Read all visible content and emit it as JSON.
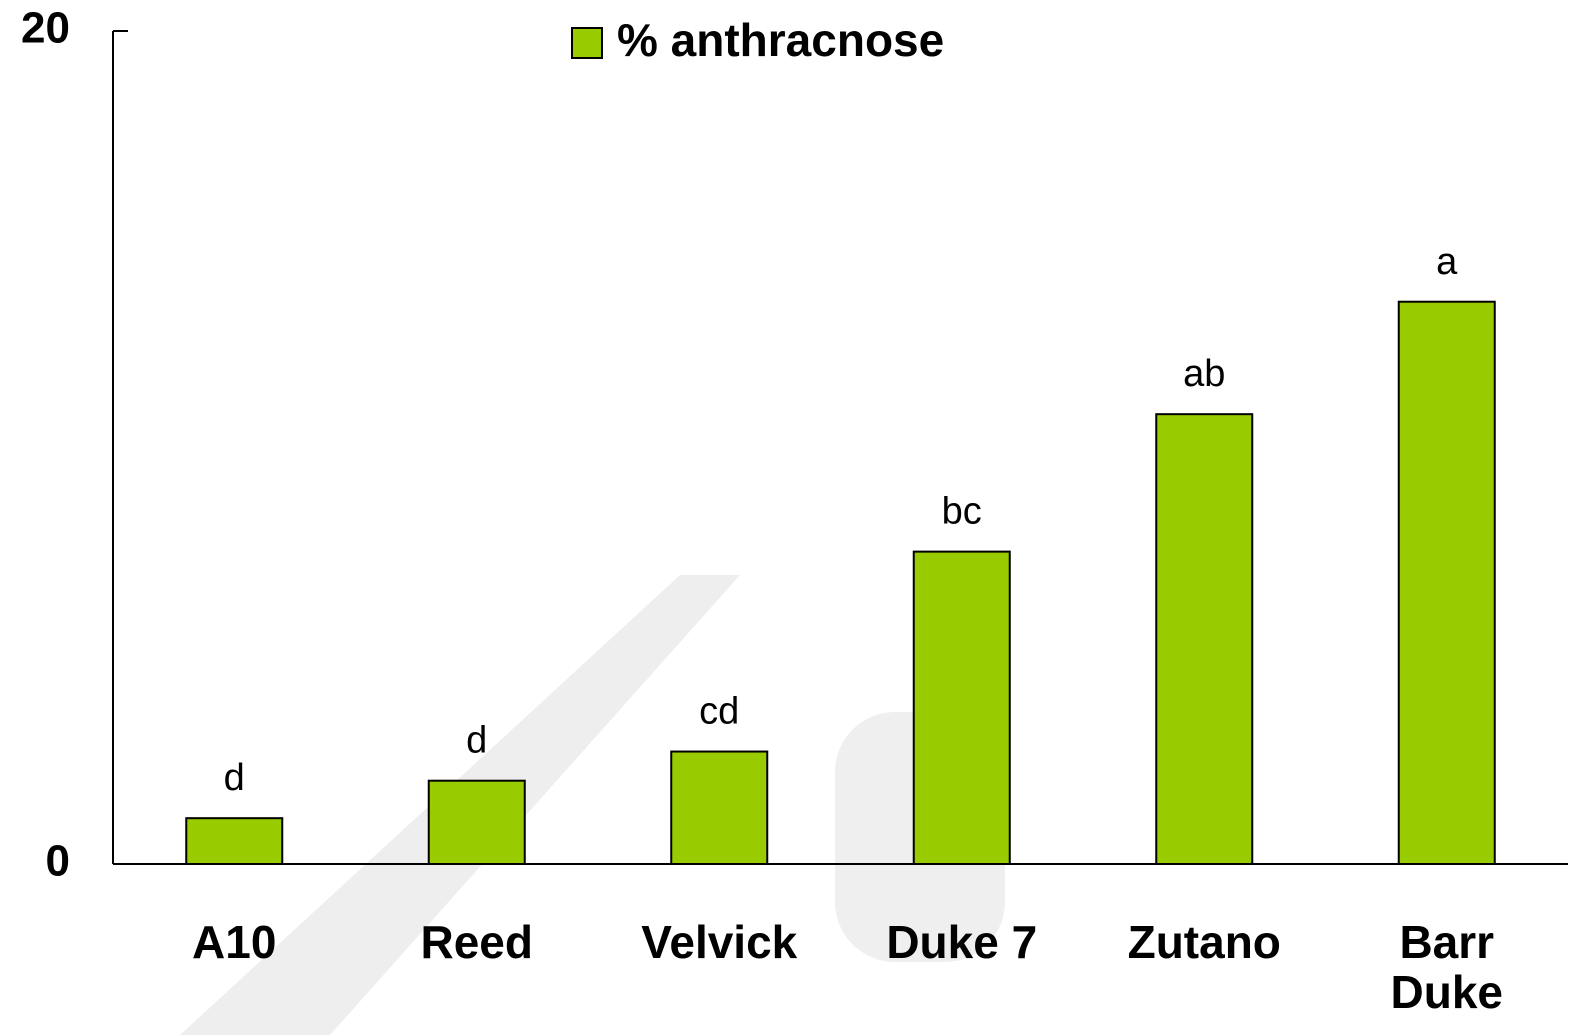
{
  "chart_data": {
    "type": "bar",
    "categories": [
      "A10",
      "Reed",
      "Velvick",
      "Duke 7",
      "Zutano",
      "Barr Duke"
    ],
    "series": [
      {
        "name": "% anthracnose",
        "color": "#99cc00",
        "values": [
          1.1,
          2.0,
          2.7,
          7.5,
          10.8,
          13.5
        ]
      }
    ],
    "annotations": [
      "d",
      "d",
      "cd",
      "bc",
      "ab",
      "a"
    ],
    "ylim": [
      0,
      20
    ],
    "yticks": [
      0,
      20
    ],
    "legend": "top",
    "grid": false
  }
}
